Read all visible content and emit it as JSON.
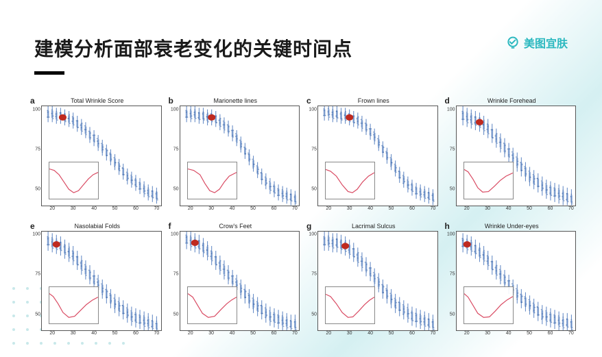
{
  "title": "建模分析面部衰老变化的关键时间点",
  "brand": {
    "name": "美图宜肤",
    "icon_color": "#2bb8bf"
  },
  "layout": {
    "background_gradient": [
      "#ffffff",
      "#d5f0f2",
      "#ffffff"
    ],
    "decoration": "dot-grid-bottom-left"
  },
  "charts_common": {
    "type": "scatter-with-boxplots",
    "xlim": [
      15,
      72
    ],
    "xticks": [
      20,
      30,
      40,
      50,
      60,
      70
    ],
    "ylim": [
      40,
      102
    ],
    "yticks": [
      50,
      75,
      100
    ],
    "series_color": "#3a66a8",
    "boxplot_color": "#6a8fc8",
    "highlight_marker": {
      "color": "#bf2a1f",
      "size": 7,
      "shape": "circle"
    },
    "axis_color": "#555555",
    "background_color": "#ffffff",
    "title_fontsize": 9,
    "tick_fontsize": 7,
    "inset": {
      "type": "line",
      "line_color": "#d94b63",
      "line_width": 1,
      "border_color": "#888888",
      "position": "bottom-left",
      "size_pct": [
        42,
        38
      ]
    }
  },
  "panels": [
    {
      "letter": "a",
      "title": "Total Wrinkle Score",
      "highlight_x": 25,
      "curve": [
        [
          18,
          97
        ],
        [
          20,
          97
        ],
        [
          22,
          96
        ],
        [
          24,
          96
        ],
        [
          26,
          95
        ],
        [
          28,
          94
        ],
        [
          30,
          93
        ],
        [
          32,
          91
        ],
        [
          34,
          89
        ],
        [
          36,
          87
        ],
        [
          38,
          84
        ],
        [
          40,
          82
        ],
        [
          42,
          79
        ],
        [
          44,
          76
        ],
        [
          46,
          73
        ],
        [
          48,
          70
        ],
        [
          50,
          67
        ],
        [
          52,
          64
        ],
        [
          54,
          61
        ],
        [
          56,
          58
        ],
        [
          58,
          56
        ],
        [
          60,
          54
        ],
        [
          62,
          52
        ],
        [
          64,
          50
        ],
        [
          66,
          48
        ],
        [
          68,
          47
        ],
        [
          70,
          46
        ]
      ],
      "spread": 5,
      "inset_curve": [
        [
          0,
          0.9
        ],
        [
          0.1,
          0.85
        ],
        [
          0.2,
          0.7
        ],
        [
          0.3,
          0.45
        ],
        [
          0.4,
          0.2
        ],
        [
          0.5,
          0.08
        ],
        [
          0.6,
          0.15
        ],
        [
          0.7,
          0.35
        ],
        [
          0.8,
          0.55
        ],
        [
          0.9,
          0.7
        ],
        [
          1,
          0.78
        ]
      ]
    },
    {
      "letter": "b",
      "title": "Marionette lines",
      "highlight_x": 30,
      "curve": [
        [
          18,
          97
        ],
        [
          20,
          97
        ],
        [
          22,
          97
        ],
        [
          24,
          96
        ],
        [
          26,
          96
        ],
        [
          28,
          95
        ],
        [
          30,
          95
        ],
        [
          32,
          94
        ],
        [
          34,
          92
        ],
        [
          36,
          90
        ],
        [
          38,
          88
        ],
        [
          40,
          85
        ],
        [
          42,
          82
        ],
        [
          44,
          78
        ],
        [
          46,
          74
        ],
        [
          48,
          70
        ],
        [
          50,
          66
        ],
        [
          52,
          62
        ],
        [
          54,
          58
        ],
        [
          56,
          55
        ],
        [
          58,
          52
        ],
        [
          60,
          50
        ],
        [
          62,
          48
        ],
        [
          64,
          47
        ],
        [
          66,
          46
        ],
        [
          68,
          45
        ],
        [
          70,
          44
        ]
      ],
      "spread": 5,
      "inset_curve": [
        [
          0,
          0.9
        ],
        [
          0.12,
          0.85
        ],
        [
          0.25,
          0.7
        ],
        [
          0.35,
          0.4
        ],
        [
          0.45,
          0.15
        ],
        [
          0.55,
          0.08
        ],
        [
          0.65,
          0.2
        ],
        [
          0.75,
          0.45
        ],
        [
          0.85,
          0.65
        ],
        [
          1,
          0.78
        ]
      ]
    },
    {
      "letter": "c",
      "title": "Frown lines",
      "highlight_x": 30,
      "curve": [
        [
          18,
          98
        ],
        [
          20,
          98
        ],
        [
          22,
          97
        ],
        [
          24,
          97
        ],
        [
          26,
          96
        ],
        [
          28,
          96
        ],
        [
          30,
          95
        ],
        [
          32,
          94
        ],
        [
          34,
          93
        ],
        [
          36,
          91
        ],
        [
          38,
          89
        ],
        [
          40,
          86
        ],
        [
          42,
          83
        ],
        [
          44,
          79
        ],
        [
          46,
          75
        ],
        [
          48,
          71
        ],
        [
          50,
          67
        ],
        [
          52,
          63
        ],
        [
          54,
          59
        ],
        [
          56,
          56
        ],
        [
          58,
          53
        ],
        [
          60,
          51
        ],
        [
          62,
          49
        ],
        [
          64,
          48
        ],
        [
          66,
          47
        ],
        [
          68,
          46
        ],
        [
          70,
          45
        ]
      ],
      "spread": 5,
      "inset_curve": [
        [
          0,
          0.88
        ],
        [
          0.1,
          0.82
        ],
        [
          0.22,
          0.65
        ],
        [
          0.34,
          0.35
        ],
        [
          0.46,
          0.12
        ],
        [
          0.55,
          0.08
        ],
        [
          0.65,
          0.2
        ],
        [
          0.76,
          0.45
        ],
        [
          0.88,
          0.65
        ],
        [
          1,
          0.77
        ]
      ]
    },
    {
      "letter": "d",
      "title": "Wrinkle Forehead",
      "highlight_x": 26,
      "curve": [
        [
          18,
          96
        ],
        [
          20,
          95
        ],
        [
          22,
          94
        ],
        [
          24,
          93
        ],
        [
          26,
          92
        ],
        [
          28,
          90
        ],
        [
          30,
          88
        ],
        [
          32,
          85
        ],
        [
          34,
          82
        ],
        [
          36,
          79
        ],
        [
          38,
          76
        ],
        [
          40,
          73
        ],
        [
          42,
          70
        ],
        [
          44,
          67
        ],
        [
          46,
          64
        ],
        [
          48,
          61
        ],
        [
          50,
          58
        ],
        [
          52,
          56
        ],
        [
          54,
          54
        ],
        [
          56,
          52
        ],
        [
          58,
          50
        ],
        [
          60,
          49
        ],
        [
          62,
          48
        ],
        [
          64,
          47
        ],
        [
          66,
          46
        ],
        [
          68,
          45
        ],
        [
          70,
          44
        ]
      ],
      "spread": 6,
      "inset_curve": [
        [
          0,
          0.88
        ],
        [
          0.08,
          0.8
        ],
        [
          0.18,
          0.55
        ],
        [
          0.28,
          0.25
        ],
        [
          0.38,
          0.1
        ],
        [
          0.5,
          0.12
        ],
        [
          0.62,
          0.3
        ],
        [
          0.74,
          0.5
        ],
        [
          0.86,
          0.65
        ],
        [
          1,
          0.76
        ]
      ]
    },
    {
      "letter": "e",
      "title": "Nasolabial Folds",
      "highlight_x": 22,
      "curve": [
        [
          18,
          96
        ],
        [
          20,
          95
        ],
        [
          22,
          94
        ],
        [
          24,
          93
        ],
        [
          26,
          91
        ],
        [
          28,
          89
        ],
        [
          30,
          87
        ],
        [
          32,
          84
        ],
        [
          34,
          81
        ],
        [
          36,
          78
        ],
        [
          38,
          75
        ],
        [
          40,
          72
        ],
        [
          42,
          69
        ],
        [
          44,
          66
        ],
        [
          46,
          63
        ],
        [
          48,
          60
        ],
        [
          50,
          57
        ],
        [
          52,
          55
        ],
        [
          54,
          53
        ],
        [
          56,
          51
        ],
        [
          58,
          49
        ],
        [
          60,
          48
        ],
        [
          62,
          47
        ],
        [
          64,
          46
        ],
        [
          66,
          45
        ],
        [
          68,
          44
        ],
        [
          70,
          43
        ]
      ],
      "spread": 6,
      "inset_curve": [
        [
          0,
          0.9
        ],
        [
          0.08,
          0.8
        ],
        [
          0.18,
          0.55
        ],
        [
          0.28,
          0.25
        ],
        [
          0.4,
          0.08
        ],
        [
          0.52,
          0.12
        ],
        [
          0.64,
          0.32
        ],
        [
          0.76,
          0.52
        ],
        [
          0.88,
          0.67
        ],
        [
          1,
          0.78
        ]
      ]
    },
    {
      "letter": "f",
      "title": "Crow's Feet",
      "highlight_x": 22,
      "curve": [
        [
          18,
          97
        ],
        [
          20,
          96
        ],
        [
          22,
          95
        ],
        [
          24,
          94
        ],
        [
          26,
          92
        ],
        [
          28,
          90
        ],
        [
          30,
          87
        ],
        [
          32,
          84
        ],
        [
          34,
          81
        ],
        [
          36,
          78
        ],
        [
          38,
          75
        ],
        [
          40,
          72
        ],
        [
          42,
          69
        ],
        [
          44,
          66
        ],
        [
          46,
          63
        ],
        [
          48,
          60
        ],
        [
          50,
          57
        ],
        [
          52,
          55
        ],
        [
          54,
          53
        ],
        [
          56,
          51
        ],
        [
          58,
          49
        ],
        [
          60,
          48
        ],
        [
          62,
          47
        ],
        [
          64,
          46
        ],
        [
          66,
          45
        ],
        [
          68,
          44
        ],
        [
          70,
          44
        ]
      ],
      "spread": 6,
      "inset_curve": [
        [
          0,
          0.9
        ],
        [
          0.1,
          0.78
        ],
        [
          0.2,
          0.5
        ],
        [
          0.3,
          0.22
        ],
        [
          0.42,
          0.08
        ],
        [
          0.55,
          0.12
        ],
        [
          0.68,
          0.35
        ],
        [
          0.8,
          0.55
        ],
        [
          0.9,
          0.68
        ],
        [
          1,
          0.78
        ]
      ]
    },
    {
      "letter": "g",
      "title": "Lacrimal Sulcus",
      "highlight_x": 28,
      "curve": [
        [
          18,
          96
        ],
        [
          20,
          96
        ],
        [
          22,
          95
        ],
        [
          24,
          95
        ],
        [
          26,
          94
        ],
        [
          28,
          93
        ],
        [
          30,
          91
        ],
        [
          32,
          89
        ],
        [
          34,
          86
        ],
        [
          36,
          83
        ],
        [
          38,
          80
        ],
        [
          40,
          77
        ],
        [
          42,
          73
        ],
        [
          44,
          70
        ],
        [
          46,
          66
        ],
        [
          48,
          63
        ],
        [
          50,
          60
        ],
        [
          52,
          57
        ],
        [
          54,
          55
        ],
        [
          56,
          53
        ],
        [
          58,
          51
        ],
        [
          60,
          49
        ],
        [
          62,
          48
        ],
        [
          64,
          47
        ],
        [
          66,
          46
        ],
        [
          68,
          45
        ],
        [
          70,
          44
        ]
      ],
      "spread": 6,
      "inset_curve": [
        [
          0,
          0.88
        ],
        [
          0.1,
          0.8
        ],
        [
          0.22,
          0.55
        ],
        [
          0.34,
          0.25
        ],
        [
          0.46,
          0.08
        ],
        [
          0.56,
          0.1
        ],
        [
          0.68,
          0.3
        ],
        [
          0.8,
          0.52
        ],
        [
          0.9,
          0.67
        ],
        [
          1,
          0.78
        ]
      ]
    },
    {
      "letter": "h",
      "title": "Wrinkle Under-eyes",
      "highlight_x": 20,
      "curve": [
        [
          18,
          95
        ],
        [
          20,
          94
        ],
        [
          22,
          93
        ],
        [
          24,
          91
        ],
        [
          26,
          89
        ],
        [
          28,
          87
        ],
        [
          30,
          84
        ],
        [
          32,
          81
        ],
        [
          34,
          78
        ],
        [
          36,
          75
        ],
        [
          38,
          72
        ],
        [
          40,
          69
        ],
        [
          42,
          66
        ],
        [
          44,
          63
        ],
        [
          46,
          60
        ],
        [
          48,
          58
        ],
        [
          50,
          56
        ],
        [
          52,
          54
        ],
        [
          54,
          52
        ],
        [
          56,
          50
        ],
        [
          58,
          49
        ],
        [
          60,
          48
        ],
        [
          62,
          47
        ],
        [
          64,
          46
        ],
        [
          66,
          45
        ],
        [
          68,
          45
        ],
        [
          70,
          44
        ]
      ],
      "spread": 6,
      "inset_curve": [
        [
          0,
          0.9
        ],
        [
          0.08,
          0.78
        ],
        [
          0.18,
          0.5
        ],
        [
          0.28,
          0.22
        ],
        [
          0.4,
          0.08
        ],
        [
          0.52,
          0.1
        ],
        [
          0.64,
          0.3
        ],
        [
          0.76,
          0.52
        ],
        [
          0.88,
          0.68
        ],
        [
          1,
          0.8
        ]
      ]
    }
  ]
}
